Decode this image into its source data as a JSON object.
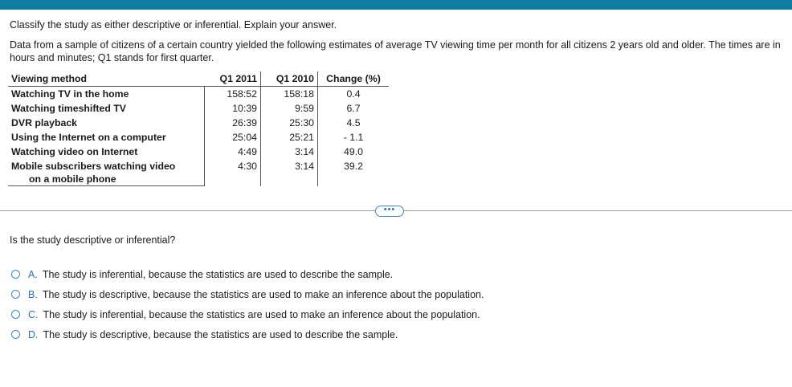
{
  "instruction": "Classify the study as either descriptive or inferential. Explain your answer.",
  "intro": "Data from a sample of citizens of a certain country yielded the following estimates of average TV viewing time per month for all citizens 2 years old and older. The times are in hours and minutes; Q1 stands for first quarter.",
  "table": {
    "headers": [
      "Viewing method",
      "Q1 2011",
      "Q1 2010",
      "Change (%)"
    ],
    "rows": [
      {
        "method": "Watching TV in the home",
        "q1_2011": "158:52",
        "q1_2010": "158:18",
        "change": "0.4"
      },
      {
        "method": "Watching timeshifted TV",
        "q1_2011": "10:39",
        "q1_2010": "9:59",
        "change": "6.7"
      },
      {
        "method": "DVR playback",
        "q1_2011": "26:39",
        "q1_2010": "25:30",
        "change": "4.5"
      },
      {
        "method": "Using the Internet on a computer",
        "q1_2011": "25:04",
        "q1_2010": "25:21",
        "change": "- 1.1"
      },
      {
        "method": "Watching video on Internet",
        "q1_2011": "4:49",
        "q1_2010": "3:14",
        "change": "49.0"
      },
      {
        "method": "Mobile subscribers watching video",
        "method_cont": "on a mobile phone",
        "q1_2011": "4:30",
        "q1_2010": "3:14",
        "change": "39.2"
      }
    ]
  },
  "more_button": "•••",
  "question": "Is the study descriptive or inferential?",
  "options": [
    {
      "letter": "A.",
      "text": "The study is inferential, because the statistics are used to describe the sample."
    },
    {
      "letter": "B.",
      "text": "The study is descriptive, because the statistics are used to make an inference about the population."
    },
    {
      "letter": "C.",
      "text": "The study is inferential, because the statistics are used to make an inference about the population."
    },
    {
      "letter": "D.",
      "text": "The study is descriptive, because the statistics are used to describe the sample."
    }
  ]
}
